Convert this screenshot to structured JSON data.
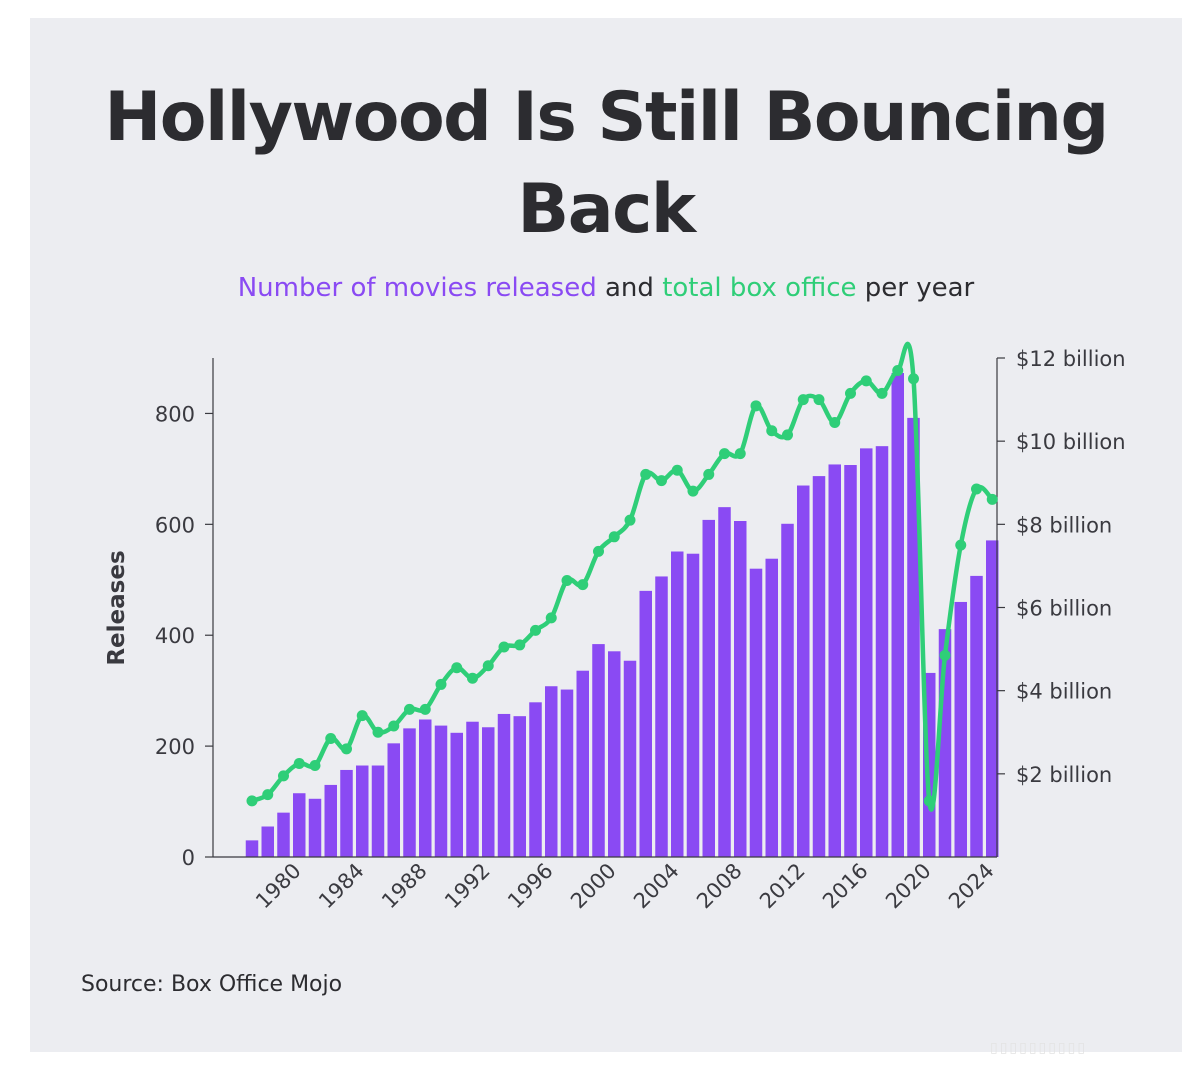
{
  "header": {
    "title": "Hollywood Is Still Bouncing Back",
    "subtitle_part1": "Number of movies released",
    "subtitle_part2": "and",
    "subtitle_part3": "total box office",
    "subtitle_part4": "per year"
  },
  "footer": {
    "source": "Source: Box Office Mojo"
  },
  "colors": {
    "bars": "#8a4af3",
    "line": "#2fce78",
    "background": "#ecedf1",
    "text": "#2c2c30"
  },
  "chart_data": {
    "type": "bar",
    "combo": "bar + line (dual axis)",
    "title": "Hollywood Is Still Bouncing Back",
    "subtitle": "Number of movies released and total box office per year",
    "ylabel": "Releases",
    "ylim": [
      0,
      900
    ],
    "y_ticks": [
      0,
      200,
      400,
      600,
      800
    ],
    "y2lim": [
      0,
      12
    ],
    "y2_ticks": [
      2,
      4,
      6,
      8,
      10,
      12
    ],
    "y2_tick_labels": [
      "$2 billion",
      "$4 billion",
      "$6 billion",
      "$8 billion",
      "$10 billion",
      "$12 billion"
    ],
    "x_tick_labels": [
      "1980",
      "1984",
      "1988",
      "1992",
      "1996",
      "2000",
      "2004",
      "2008",
      "2012",
      "2016",
      "2020",
      "2024"
    ],
    "grid": false,
    "x": [
      1977,
      1978,
      1979,
      1980,
      1981,
      1982,
      1983,
      1984,
      1985,
      1986,
      1987,
      1988,
      1989,
      1990,
      1991,
      1992,
      1993,
      1994,
      1995,
      1996,
      1997,
      1998,
      1999,
      2000,
      2001,
      2002,
      2003,
      2004,
      2005,
      2006,
      2007,
      2008,
      2009,
      2010,
      2011,
      2012,
      2013,
      2014,
      2015,
      2016,
      2017,
      2018,
      2019,
      2020,
      2021,
      2022,
      2023,
      2024
    ],
    "series": [
      {
        "name": "Number of movies released",
        "type": "bar",
        "axis": "left",
        "values": [
          30,
          55,
          80,
          115,
          105,
          130,
          157,
          165,
          165,
          205,
          232,
          248,
          237,
          224,
          244,
          234,
          258,
          254,
          279,
          308,
          302,
          336,
          384,
          371,
          354,
          480,
          506,
          551,
          547,
          608,
          631,
          606,
          520,
          538,
          601,
          670,
          687,
          708,
          707,
          737,
          741,
          873,
          792,
          332,
          411,
          460,
          507,
          571
        ]
      },
      {
        "name": "Total box office",
        "type": "line",
        "axis": "right",
        "values": [
          1.35,
          1.5,
          1.95,
          2.25,
          2.2,
          2.85,
          2.6,
          3.4,
          3.0,
          3.15,
          3.55,
          3.55,
          4.15,
          4.55,
          4.3,
          4.6,
          5.05,
          5.1,
          5.45,
          5.75,
          6.65,
          6.55,
          7.35,
          7.7,
          8.1,
          9.2,
          9.05,
          9.3,
          8.8,
          9.2,
          9.7,
          9.7,
          10.85,
          10.25,
          10.15,
          11.0,
          11.0,
          10.45,
          11.15,
          11.45,
          11.15,
          11.7,
          11.5,
          1.35,
          4.85,
          7.5,
          8.85,
          8.6
        ]
      }
    ]
  }
}
